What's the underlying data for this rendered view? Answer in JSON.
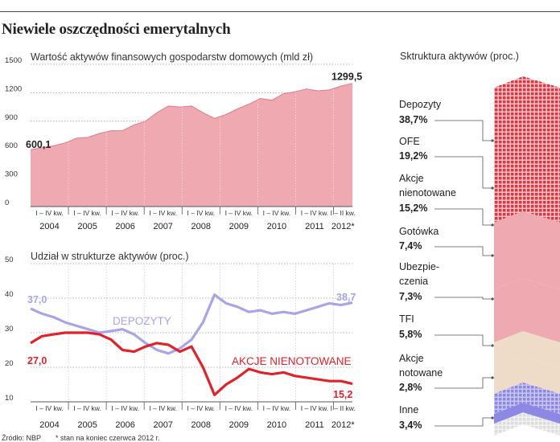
{
  "title": "Niewiele oszczędności emerytalnych",
  "source": "Źródło: NBP",
  "footnote": "* stan na koniec czerwca 2012 r.",
  "colors": {
    "area": "#eeaab0",
    "area_edge": "#e17a86",
    "red": "#e0222a",
    "purple": "#a8a4ea",
    "dark": "#333333"
  },
  "chart_data": [
    {
      "type": "area",
      "title": "Wartość aktywów finansowych gospodarstw domowych (mld zł)",
      "ylim": [
        0,
        1500
      ],
      "yticks": [
        0,
        300,
        600,
        900,
        1200,
        1500
      ],
      "quarter_label": "I – IV kw.",
      "last_period_label": "I – II kw.",
      "years": [
        "2004",
        "2005",
        "2006",
        "2007",
        "2008",
        "2009",
        "2010",
        "2011",
        "2012*"
      ],
      "values": [
        600.1,
        620,
        640,
        670,
        720,
        730,
        770,
        800,
        800,
        860,
        900,
        990,
        1060,
        1050,
        1060,
        990,
        930,
        970,
        1030,
        1080,
        1140,
        1120,
        1190,
        1210,
        1240,
        1220,
        1230,
        1270,
        1299.5
      ],
      "labels": {
        "first": "600,1",
        "last": "1299,5"
      }
    },
    {
      "type": "line",
      "title": "Udział w strukturze aktywów (proc.)",
      "ylim": [
        10,
        50
      ],
      "yticks": [
        10,
        20,
        30,
        40,
        50
      ],
      "series": [
        {
          "name": "DEPOZYTY",
          "color": "#a8a4ea",
          "values": [
            37.0,
            35.5,
            34.5,
            33.0,
            32.0,
            31.0,
            30.0,
            30.5,
            31.0,
            29.5,
            27.0,
            25.0,
            24.0,
            25.5,
            28.0,
            33.0,
            41.0,
            38.5,
            37.5,
            36.0,
            36.5,
            35.5,
            36.0,
            35.5,
            36.5,
            37.5,
            38.5,
            38.0,
            38.7
          ],
          "start_label": "37,0",
          "end_label": "38,7"
        },
        {
          "name": "AKCJE NIENOTOWANE",
          "color": "#e0222a",
          "values": [
            27.0,
            29.0,
            29.5,
            30.0,
            30.0,
            30.0,
            29.5,
            28.0,
            25.0,
            24.5,
            26.0,
            27.0,
            26.5,
            24.5,
            26.0,
            20.0,
            12.0,
            15.0,
            17.0,
            19.5,
            18.5,
            18.0,
            18.5,
            17.5,
            17.0,
            16.5,
            16.0,
            16.0,
            15.2
          ],
          "start_label": "27,0",
          "end_label": "15,2"
        }
      ]
    },
    {
      "type": "area",
      "title": "Sktruktura aktywów (proc.)",
      "categories": [
        "Depozyty",
        "OFE",
        "Akcje nienotowane",
        "Gotówka",
        "Ubezpie-­czenia",
        "TFI",
        "Akcje notowane",
        "Inne"
      ],
      "category_lines": [
        [
          "Depozyty"
        ],
        [
          "OFE"
        ],
        [
          "Akcje",
          "nienotowane"
        ],
        [
          "Gotówka"
        ],
        [
          "Ubezpie-",
          "czenia"
        ],
        [
          "TFI"
        ],
        [
          "Akcje",
          "notowane"
        ],
        [
          "Inne"
        ]
      ],
      "values": [
        38.7,
        19.2,
        15.2,
        7.4,
        7.3,
        5.8,
        2.8,
        3.4
      ],
      "value_labels": [
        "38,7%",
        "19,2%",
        "15,2%",
        "7,4%",
        "7,3%",
        "5,8%",
        "2,8%",
        "3,4%"
      ]
    }
  ]
}
